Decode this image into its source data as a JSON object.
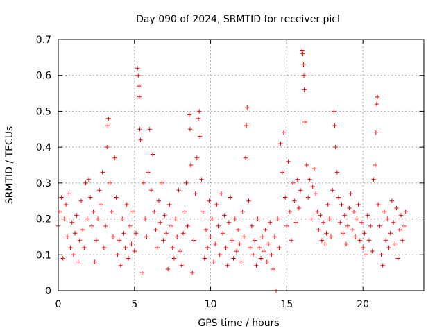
{
  "chart_data": {
    "type": "scatter",
    "title": "Day 090 of 2024, SRMTID for receiver picl",
    "xlabel": "GPS time / hours",
    "ylabel": "SRMTID / TECUs",
    "xlim": [
      0,
      24
    ],
    "ylim": [
      0,
      0.7
    ],
    "xticks": [
      0,
      5,
      10,
      15,
      20
    ],
    "xtick_labels": [
      "0",
      "5",
      "10",
      "15",
      "20"
    ],
    "yticks": [
      0,
      0.1,
      0.2,
      0.3,
      0.4,
      0.5,
      0.6,
      0.7
    ],
    "ytick_labels": [
      "0",
      "0.1",
      "0.2",
      "0.3",
      "0.4",
      "0.5",
      "0.6",
      "0.7"
    ],
    "grid": true,
    "marker": "plus",
    "color": "#ff0000",
    "series": [
      {
        "name": "SRMTID",
        "points": [
          [
            0.0,
            0.18
          ],
          [
            0.1,
            0.22
          ],
          [
            0.2,
            0.26
          ],
          [
            0.3,
            0.09
          ],
          [
            0.4,
            0.2
          ],
          [
            0.5,
            0.24
          ],
          [
            0.6,
            0.15
          ],
          [
            0.7,
            0.27
          ],
          [
            0.8,
            0.12
          ],
          [
            0.9,
            0.19
          ],
          [
            1.0,
            0.1
          ],
          [
            1.1,
            0.16
          ],
          [
            1.2,
            0.21
          ],
          [
            1.3,
            0.08
          ],
          [
            1.4,
            0.14
          ],
          [
            1.5,
            0.25
          ],
          [
            1.6,
            0.17
          ],
          [
            1.7,
            0.12
          ],
          [
            1.8,
            0.3
          ],
          [
            1.9,
            0.2
          ],
          [
            2.0,
            0.31
          ],
          [
            2.1,
            0.26
          ],
          [
            2.2,
            0.18
          ],
          [
            2.3,
            0.22
          ],
          [
            2.4,
            0.08
          ],
          [
            2.5,
            0.14
          ],
          [
            2.6,
            0.2
          ],
          [
            2.7,
            0.28
          ],
          [
            2.8,
            0.24
          ],
          [
            2.9,
            0.33
          ],
          [
            3.0,
            0.12
          ],
          [
            3.1,
            0.18
          ],
          [
            3.2,
            0.4
          ],
          [
            3.25,
            0.46
          ],
          [
            3.3,
            0.48
          ],
          [
            3.4,
            0.3
          ],
          [
            3.5,
            0.22
          ],
          [
            3.6,
            0.15
          ],
          [
            3.7,
            0.37
          ],
          [
            3.8,
            0.26
          ],
          [
            3.9,
            0.1
          ],
          [
            4.0,
            0.14
          ],
          [
            4.1,
            0.07
          ],
          [
            4.2,
            0.2
          ],
          [
            4.3,
            0.16
          ],
          [
            4.4,
            0.12
          ],
          [
            4.5,
            0.24
          ],
          [
            4.6,
            0.09
          ],
          [
            4.7,
            0.18
          ],
          [
            4.8,
            0.13
          ],
          [
            4.9,
            0.22
          ],
          [
            5.0,
            0.11
          ],
          [
            5.1,
            0.16
          ],
          [
            5.2,
            0.62
          ],
          [
            5.25,
            0.6
          ],
          [
            5.3,
            0.57
          ],
          [
            5.32,
            0.54
          ],
          [
            5.35,
            0.45
          ],
          [
            5.4,
            0.42
          ],
          [
            5.5,
            0.05
          ],
          [
            5.6,
            0.3
          ],
          [
            5.7,
            0.2
          ],
          [
            5.8,
            0.15
          ],
          [
            5.9,
            0.33
          ],
          [
            6.0,
            0.45
          ],
          [
            6.1,
            0.28
          ],
          [
            6.2,
            0.38
          ],
          [
            6.3,
            0.22
          ],
          [
            6.4,
            0.17
          ],
          [
            6.5,
            0.12
          ],
          [
            6.6,
            0.25
          ],
          [
            6.7,
            0.19
          ],
          [
            6.8,
            0.3
          ],
          [
            6.9,
            0.14
          ],
          [
            7.0,
            0.21
          ],
          [
            7.1,
            0.16
          ],
          [
            7.2,
            0.06
          ],
          [
            7.3,
            0.24
          ],
          [
            7.4,
            0.18
          ],
          [
            7.5,
            0.12
          ],
          [
            7.6,
            0.09
          ],
          [
            7.7,
            0.2
          ],
          [
            7.8,
            0.15
          ],
          [
            7.9,
            0.28
          ],
          [
            8.0,
            0.11
          ],
          [
            8.1,
            0.07
          ],
          [
            8.2,
            0.16
          ],
          [
            8.3,
            0.22
          ],
          [
            8.4,
            0.3
          ],
          [
            8.5,
            0.18
          ],
          [
            8.6,
            0.49
          ],
          [
            8.65,
            0.45
          ],
          [
            8.7,
            0.35
          ],
          [
            8.8,
            0.05
          ],
          [
            8.9,
            0.14
          ],
          [
            9.0,
            0.27
          ],
          [
            9.1,
            0.37
          ],
          [
            9.2,
            0.48
          ],
          [
            9.25,
            0.5
          ],
          [
            9.3,
            0.43
          ],
          [
            9.4,
            0.31
          ],
          [
            9.5,
            0.22
          ],
          [
            9.6,
            0.09
          ],
          [
            9.7,
            0.17
          ],
          [
            9.8,
            0.12
          ],
          [
            9.9,
            0.25
          ],
          [
            10.0,
            0.15
          ],
          [
            10.1,
            0.2
          ],
          [
            10.2,
            0.08
          ],
          [
            10.3,
            0.13
          ],
          [
            10.4,
            0.24
          ],
          [
            10.5,
            0.18
          ],
          [
            10.6,
            0.1
          ],
          [
            10.7,
            0.27
          ],
          [
            10.8,
            0.16
          ],
          [
            10.9,
            0.21
          ],
          [
            11.0,
            0.12
          ],
          [
            11.1,
            0.07
          ],
          [
            11.2,
            0.19
          ],
          [
            11.3,
            0.26
          ],
          [
            11.4,
            0.14
          ],
          [
            11.5,
            0.09
          ],
          [
            11.6,
            0.2
          ],
          [
            11.7,
            0.11
          ],
          [
            11.8,
            0.17
          ],
          [
            11.9,
            0.13
          ],
          [
            12.0,
            0.08
          ],
          [
            12.1,
            0.22
          ],
          [
            12.2,
            0.15
          ],
          [
            12.3,
            0.37
          ],
          [
            12.35,
            0.46
          ],
          [
            12.4,
            0.51
          ],
          [
            12.5,
            0.25
          ],
          [
            12.6,
            0.12
          ],
          [
            12.7,
            0.18
          ],
          [
            12.8,
            0.1
          ],
          [
            12.9,
            0.14
          ],
          [
            13.0,
            0.07
          ],
          [
            13.1,
            0.2
          ],
          [
            13.2,
            0.12
          ],
          [
            13.3,
            0.09
          ],
          [
            13.4,
            0.15
          ],
          [
            13.5,
            0.11
          ],
          [
            13.6,
            0.17
          ],
          [
            13.7,
            0.08
          ],
          [
            13.8,
            0.13
          ],
          [
            13.9,
            0.19
          ],
          [
            14.0,
            0.1
          ],
          [
            14.1,
            0.06
          ],
          [
            14.2,
            0.15
          ],
          [
            14.3,
            0.0
          ],
          [
            14.4,
            0.2
          ],
          [
            14.5,
            0.12
          ],
          [
            14.6,
            0.41
          ],
          [
            14.7,
            0.33
          ],
          [
            14.8,
            0.44
          ],
          [
            14.9,
            0.26
          ],
          [
            15.0,
            0.18
          ],
          [
            15.1,
            0.36
          ],
          [
            15.2,
            0.22
          ],
          [
            15.3,
            0.14
          ],
          [
            15.4,
            0.3
          ],
          [
            15.5,
            0.25
          ],
          [
            15.6,
            0.19
          ],
          [
            15.7,
            0.31
          ],
          [
            15.8,
            0.23
          ],
          [
            15.9,
            0.28
          ],
          [
            16.0,
            0.67
          ],
          [
            16.05,
            0.66
          ],
          [
            16.1,
            0.63
          ],
          [
            16.12,
            0.6
          ],
          [
            16.15,
            0.56
          ],
          [
            16.2,
            0.47
          ],
          [
            16.3,
            0.35
          ],
          [
            16.4,
            0.26
          ],
          [
            16.5,
            0.31
          ],
          [
            16.6,
            0.2
          ],
          [
            16.7,
            0.29
          ],
          [
            16.8,
            0.34
          ],
          [
            16.9,
            0.27
          ],
          [
            17.0,
            0.22
          ],
          [
            17.1,
            0.17
          ],
          [
            17.2,
            0.21
          ],
          [
            17.3,
            0.14
          ],
          [
            17.4,
            0.19
          ],
          [
            17.5,
            0.13
          ],
          [
            17.6,
            0.16
          ],
          [
            17.7,
            0.24
          ],
          [
            17.8,
            0.2
          ],
          [
            17.9,
            0.15
          ],
          [
            18.0,
            0.28
          ],
          [
            18.1,
            0.5
          ],
          [
            18.15,
            0.46
          ],
          [
            18.2,
            0.4
          ],
          [
            18.3,
            0.33
          ],
          [
            18.4,
            0.26
          ],
          [
            18.5,
            0.19
          ],
          [
            18.6,
            0.24
          ],
          [
            18.7,
            0.16
          ],
          [
            18.8,
            0.21
          ],
          [
            18.9,
            0.13
          ],
          [
            19.0,
            0.18
          ],
          [
            19.1,
            0.23
          ],
          [
            19.2,
            0.27
          ],
          [
            19.3,
            0.17
          ],
          [
            19.4,
            0.22
          ],
          [
            19.5,
            0.15
          ],
          [
            19.6,
            0.2
          ],
          [
            19.7,
            0.24
          ],
          [
            19.8,
            0.14
          ],
          [
            19.9,
            0.19
          ],
          [
            20.0,
            0.12
          ],
          [
            20.1,
            0.16
          ],
          [
            20.2,
            0.1
          ],
          [
            20.3,
            0.21
          ],
          [
            20.4,
            0.14
          ],
          [
            20.5,
            0.18
          ],
          [
            20.6,
            0.11
          ],
          [
            20.7,
            0.31
          ],
          [
            20.8,
            0.35
          ],
          [
            20.85,
            0.44
          ],
          [
            20.9,
            0.52
          ],
          [
            20.95,
            0.54
          ],
          [
            21.0,
            0.24
          ],
          [
            21.1,
            0.18
          ],
          [
            21.2,
            0.1
          ],
          [
            21.3,
            0.07
          ],
          [
            21.4,
            0.22
          ],
          [
            21.5,
            0.14
          ],
          [
            21.6,
            0.2
          ],
          [
            21.7,
            0.12
          ],
          [
            21.8,
            0.16
          ],
          [
            21.9,
            0.25
          ],
          [
            22.0,
            0.19
          ],
          [
            22.1,
            0.13
          ],
          [
            22.2,
            0.23
          ],
          [
            22.3,
            0.09
          ],
          [
            22.4,
            0.17
          ],
          [
            22.5,
            0.21
          ],
          [
            22.6,
            0.14
          ],
          [
            22.7,
            0.18
          ],
          [
            22.8,
            0.22
          ]
        ]
      }
    ]
  }
}
